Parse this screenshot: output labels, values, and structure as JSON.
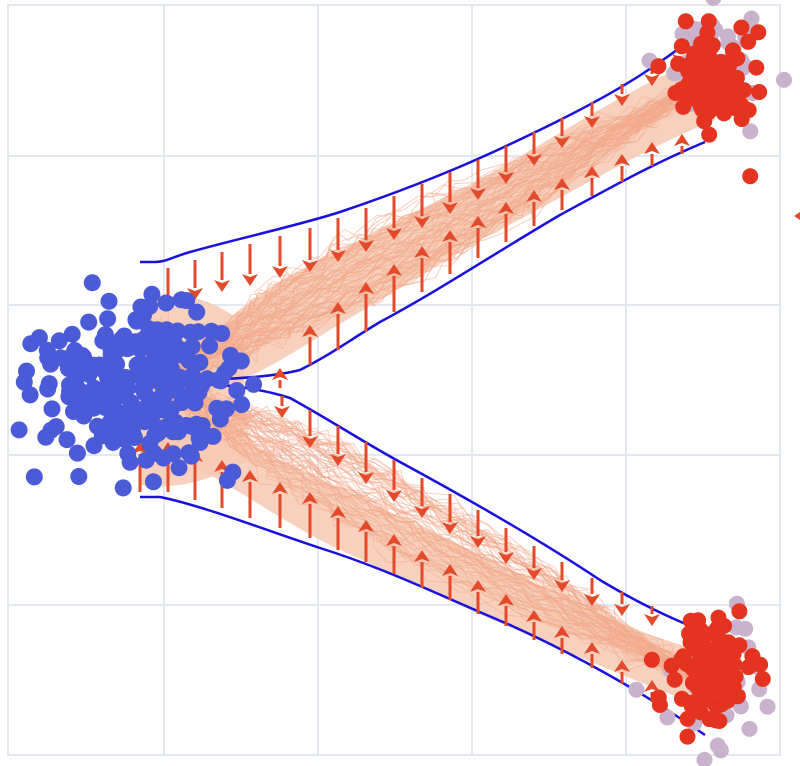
{
  "colors": {
    "background": "#ffffff",
    "grid": "#e3e8f1",
    "source_cluster": "#4b5bd7",
    "target_cluster": "#e4341f",
    "target_cluster_shadow": "#c9b3cc",
    "trajectories": "#f2a98c",
    "trajectory_band": "#f6c9b3",
    "boundary": "#1a10dd",
    "arrows": "#e24a2a"
  },
  "icons": {
    "offscreen_marker": "left-pointing-triangle-icon"
  }
}
